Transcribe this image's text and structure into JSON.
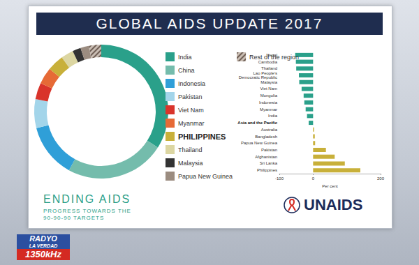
{
  "header": {
    "title": "GLOBAL AIDS UPDATE 2017"
  },
  "chart_data": [
    {
      "type": "pie",
      "categories": [
        "India",
        "China",
        "Indonesia",
        "Pakistan",
        "Viet Nam",
        "Myanmar",
        "PHILIPPINES",
        "Thailand",
        "Malaysia",
        "Papua New Guinea",
        "Rest of the region"
      ],
      "values": [
        34,
        24,
        13,
        7,
        4,
        4,
        4,
        3,
        2,
        2,
        3
      ],
      "colors": [
        "#2aa08a",
        "#74bcac",
        "#2f9fd8",
        "#a3d5ea",
        "#d9342b",
        "#e66a36",
        "#c8b03a",
        "#dcd6a2",
        "#333333",
        "#9b8c80",
        "#c9bdb3"
      ],
      "legend": "right",
      "data_labels": false
    },
    {
      "type": "bar",
      "orientation": "horizontal",
      "categories": [
        "Nepal",
        "Cambodia",
        "Thailand",
        "Lao People's\nDemocratic Republic",
        "Malaysia",
        "Viet Nam",
        "Mongolia",
        "Indonesia",
        "Myanmar",
        "India",
        "Asia and the Pacific",
        "Australia",
        "Bangladesh",
        "Papua New Guinea",
        "Pakistan",
        "Afghanistan",
        "Sri Lanka",
        "Philippines"
      ],
      "values": [
        -53,
        -51,
        -50,
        -42,
        -41,
        -34,
        -28,
        -26,
        -22,
        -18,
        -13,
        3,
        5,
        6,
        38,
        64,
        94,
        140
      ],
      "colors": [
        "#2aa08a",
        "#2aa08a",
        "#2aa08a",
        "#2aa08a",
        "#2aa08a",
        "#2aa08a",
        "#2aa08a",
        "#2aa08a",
        "#2aa08a",
        "#2aa08a",
        "#2aa08a",
        "#c8b03a",
        "#c8b03a",
        "#c8b03a",
        "#c8b03a",
        "#c8b03a",
        "#c8b03a",
        "#c8b03a"
      ],
      "xlim": [
        -100,
        200
      ],
      "xticks": [
        -100,
        0,
        200
      ],
      "xlabel": "Per cent",
      "grid": false,
      "data_labels": false
    }
  ],
  "footer": {
    "title": "ENDING AIDS",
    "subtitle": [
      "PROGRESS TOWARDS THE",
      "90-90-90 TARGETS"
    ],
    "logo": "UNAIDS"
  },
  "broadcaster": {
    "name": [
      "RADYO",
      "LA VERDAD"
    ],
    "frequency": "1350kHz"
  }
}
